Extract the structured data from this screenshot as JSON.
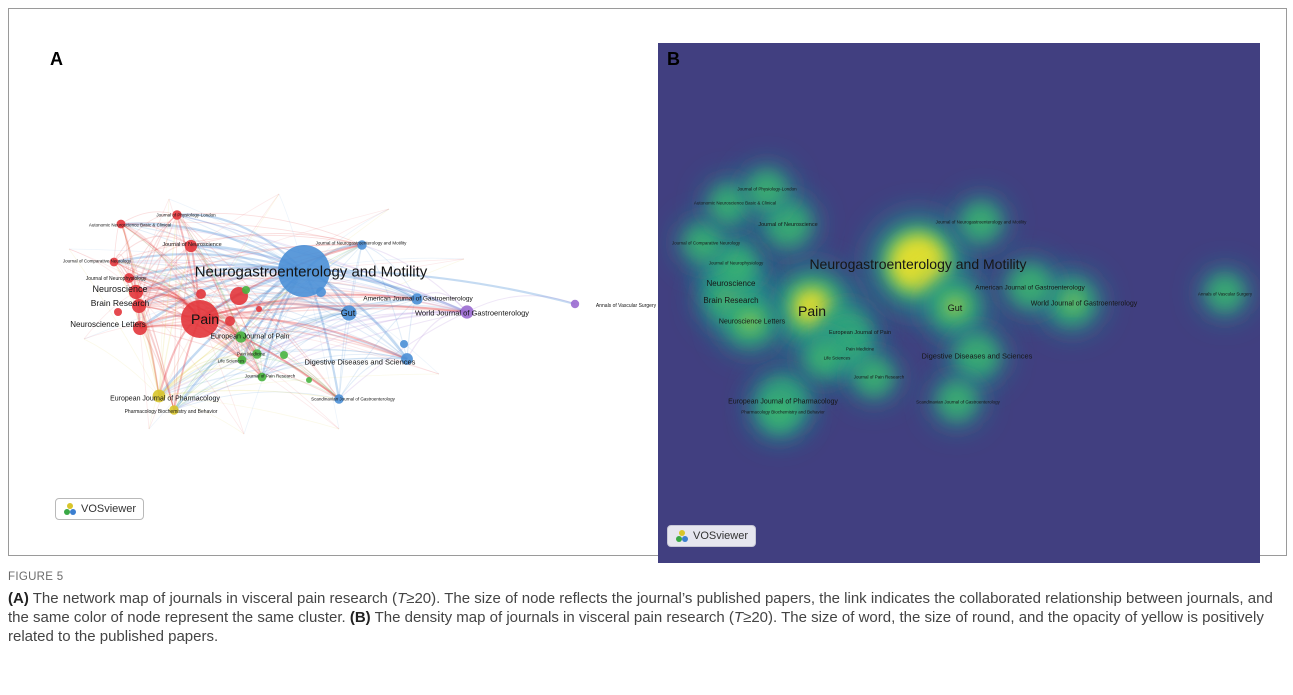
{
  "panels": {
    "a_letter": "A",
    "b_letter": "B"
  },
  "vosviewer": {
    "label": "VOSviewer",
    "icon": "vosviewer-logo-icon"
  },
  "network": {
    "nodes": [
      {
        "label": "Neurogastroenterology and Motility",
        "cluster": "blue",
        "weight": 1.0
      },
      {
        "label": "Pain",
        "cluster": "red",
        "weight": 0.78
      },
      {
        "label": "Gut",
        "cluster": "blue",
        "weight": 0.38
      },
      {
        "label": "Neuroscience",
        "cluster": "red",
        "weight": 0.34
      },
      {
        "label": "Brain Research",
        "cluster": "red",
        "weight": 0.33
      },
      {
        "label": "Neuroscience Letters",
        "cluster": "red",
        "weight": 0.33
      },
      {
        "label": "World Journal of Gastroenterology",
        "cluster": "purple",
        "weight": 0.3
      },
      {
        "label": "American Journal of Gastroenterology",
        "cluster": "blue",
        "weight": 0.22
      },
      {
        "label": "Digestive Diseases and Sciences",
        "cluster": "blue",
        "weight": 0.24
      },
      {
        "label": "European Journal of Pharmacology",
        "cluster": "yellow",
        "weight": 0.28
      },
      {
        "label": "European Journal of Pain",
        "cluster": "green",
        "weight": 0.22
      },
      {
        "label": "Journal of Neuroscience",
        "cluster": "red",
        "weight": 0.26
      },
      {
        "label": "Journal of Neurophysiology",
        "cluster": "red",
        "weight": 0.16
      },
      {
        "label": "Journal of Comparative Neurology",
        "cluster": "red",
        "weight": 0.12
      },
      {
        "label": "Autonomic Neuroscience Basic & Clinical",
        "cluster": "red",
        "weight": 0.12
      },
      {
        "label": "Journal of Physiology-London",
        "cluster": "red",
        "weight": 0.14
      },
      {
        "label": "Journal of Neurogastroenterology and Motility",
        "cluster": "blue",
        "weight": 0.14
      },
      {
        "label": "Pain Medicine",
        "cluster": "green",
        "weight": 0.14
      },
      {
        "label": "Life Sciences",
        "cluster": "green",
        "weight": 0.12
      },
      {
        "label": "Journal of Pain Research",
        "cluster": "green",
        "weight": 0.12
      },
      {
        "label": "Scandinavian Journal of Gastroenterology",
        "cluster": "blue",
        "weight": 0.14
      },
      {
        "label": "Pharmacology Biochemistry and Behavior",
        "cluster": "yellow",
        "weight": 0.14
      },
      {
        "label": "Annals of Vascular Surgery",
        "cluster": "purple",
        "weight": 0.1
      }
    ],
    "cluster_colors": {
      "red": "#e2353b",
      "blue": "#4a8fd6",
      "green": "#48b43f",
      "yellow": "#d8c52b",
      "purple": "#9a6ad0"
    }
  },
  "density": {
    "background": "#413f80",
    "labels": [
      "Neurogastroenterology and Motility",
      "Pain",
      "Gut",
      "Neuroscience",
      "Brain Research",
      "Neuroscience Letters",
      "World Journal of Gastroenterology",
      "American Journal of Gastroenterology",
      "Digestive Diseases and Sciences",
      "European Journal of Pharmacology",
      "European Journal of Pain",
      "Journal of Neuroscience",
      "Journal of Neurophysiology",
      "Journal of Comparative Neurology",
      "Autonomic Neuroscience Basic & Clinical",
      "Journal of Physiology-London",
      "Journal of Neurogastroenterology and Motility",
      "Pain Medicine",
      "Life Sciences",
      "Journal of Pain Research",
      "Scandinavian Journal of Gastroenterology",
      "Pharmacology Biochemistry and Behavior",
      "Annals of Vascular Surgery"
    ]
  },
  "caption": {
    "figure_label": "FIGURE 5",
    "a_tag": "(A)",
    "a_text_1": " The network map of journals in visceral pain research (",
    "a_t": "T",
    "a_text_2": "≥20). The size of node reflects the journal’s published papers, the link indicates the collaborated relationship between journals, and the same color of node represent the same cluster. ",
    "b_tag": "(B)",
    "b_text_1": " The density map of journals in visceral pain research (",
    "b_t": "T",
    "b_text_2": "≥20). The size of word, the size of round, and the opacity of yellow is positively related to the published papers."
  }
}
